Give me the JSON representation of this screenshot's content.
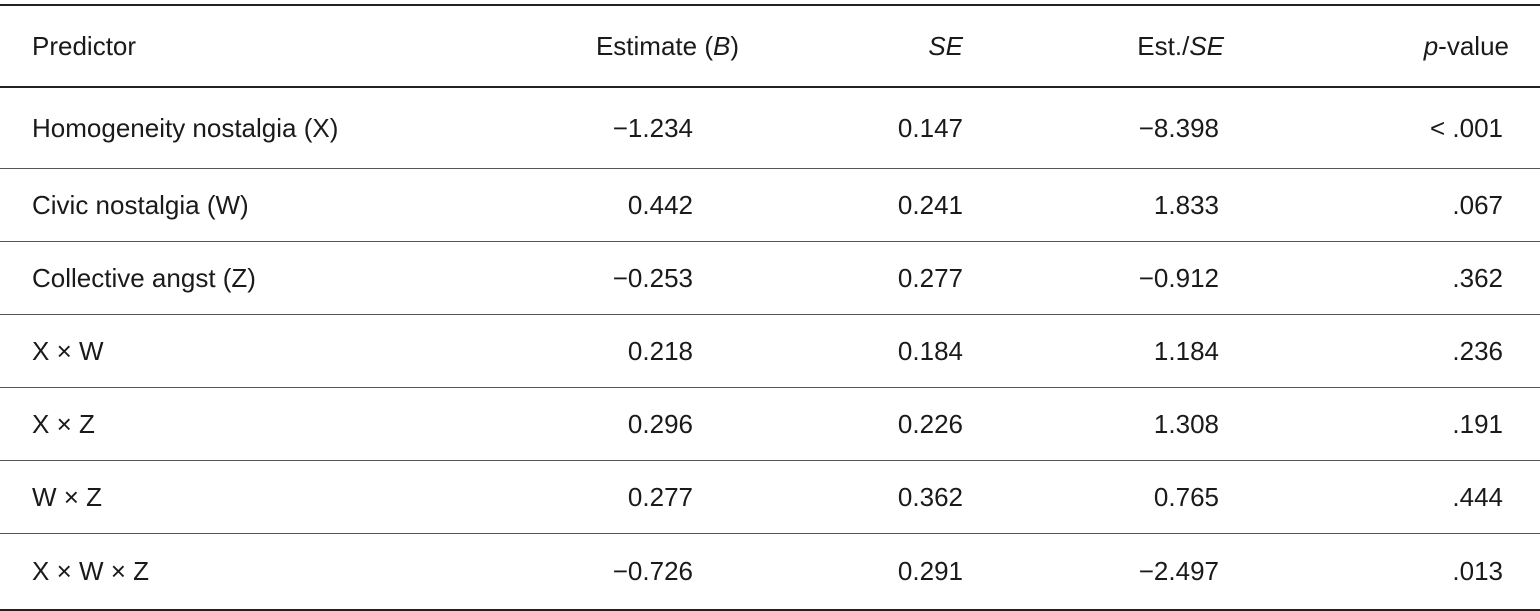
{
  "table": {
    "headers": {
      "predictor": "Predictor",
      "estimate_prefix": "Estimate (",
      "estimate_italic": "B",
      "estimate_suffix": ")",
      "se": "SE",
      "estse_prefix": "Est./",
      "estse_italic": "SE",
      "p_italic": "p",
      "p_suffix": "-value"
    },
    "rows": [
      {
        "predictor": "Homogeneity nostalgia (X)",
        "estimate": "−1.234",
        "se": "0.147",
        "est_se": "−8.398",
        "p": "< .001"
      },
      {
        "predictor": "Civic nostalgia (W)",
        "estimate": "0.442",
        "se": "0.241",
        "est_se": "1.833",
        "p": ".067"
      },
      {
        "predictor": "Collective angst (Z)",
        "estimate": "−0.253",
        "se": "0.277",
        "est_se": "−0.912",
        "p": ".362"
      },
      {
        "predictor": "X × W",
        "estimate": "0.218",
        "se": "0.184",
        "est_se": "1.184",
        "p": ".236"
      },
      {
        "predictor": "X × Z",
        "estimate": "0.296",
        "se": "0.226",
        "est_se": "1.308",
        "p": ".191"
      },
      {
        "predictor": "W × Z",
        "estimate": "0.277",
        "se": "0.362",
        "est_se": "0.765",
        "p": ".444"
      },
      {
        "predictor": "X × W × Z",
        "estimate": "−0.726",
        "se": "0.291",
        "est_se": "−2.497",
        "p": ".013"
      }
    ]
  }
}
